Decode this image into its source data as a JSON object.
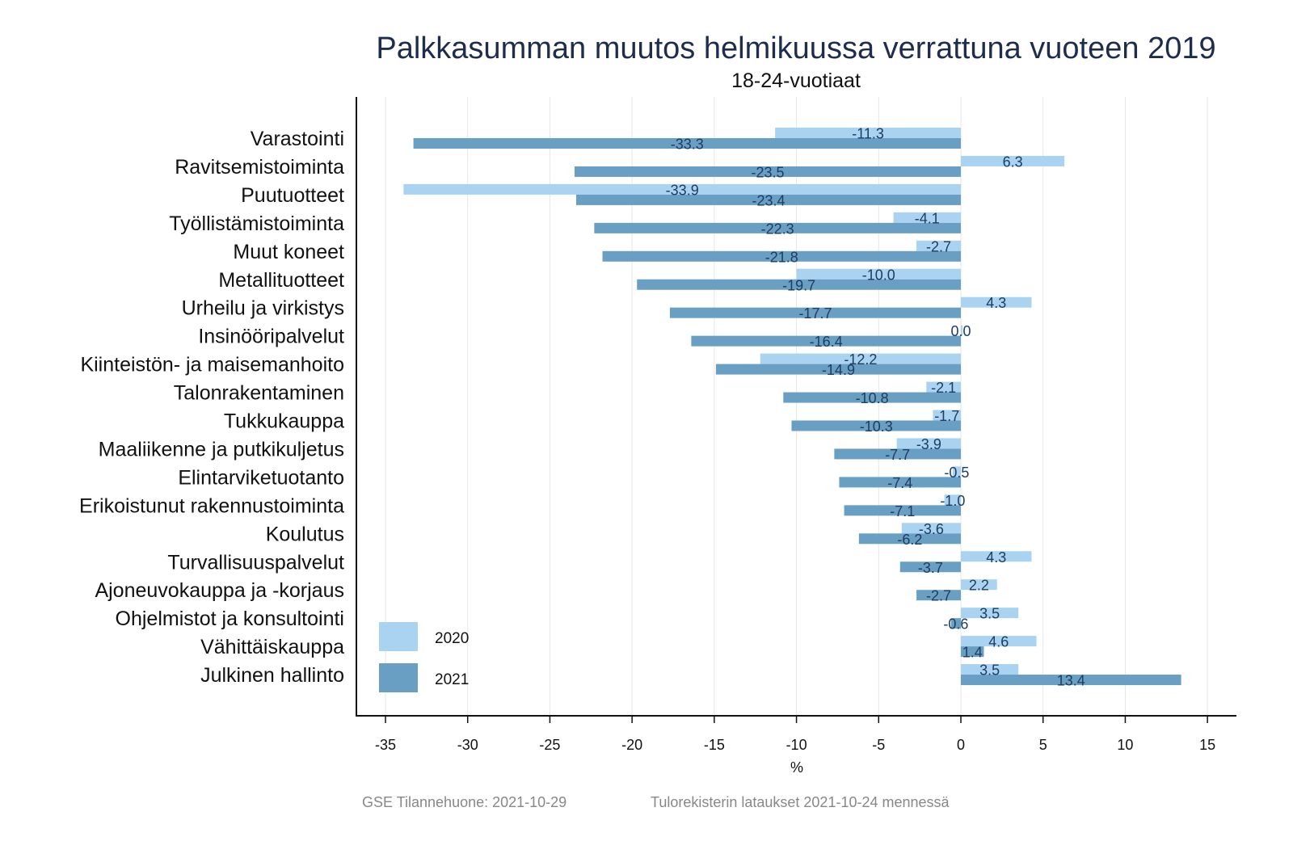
{
  "chart_data": {
    "type": "bar",
    "orientation": "horizontal",
    "title": "Palkkasumman muutos helmikuussa verrattuna vuoteen 2019",
    "subtitle": "18-24-vuotiaat",
    "xlabel": "%",
    "xlim": [
      -37,
      16.5
    ],
    "xticks": [
      -35,
      -30,
      -25,
      -20,
      -15,
      -10,
      -5,
      0,
      5,
      10,
      15
    ],
    "grid": true,
    "legend_position": "bottom-left",
    "categories": [
      "Varastointi",
      "Ravitsemistoiminta",
      "Puutuotteet",
      "Työllistämistoiminta",
      "Muut koneet",
      "Metallituotteet",
      "Urheilu ja virkistys",
      "Insinööripalvelut",
      "Kiinteistön- ja maisemanhoito",
      "Talonrakentaminen",
      "Tukkukauppa",
      "Maaliikenne ja putkikuljetus",
      "Elintarviketuotanto",
      "Erikoistunut rakennustoiminta",
      "Koulutus",
      "Turvallisuuspalvelut",
      "Ajoneuvokauppa ja -korjaus",
      "Ohjelmistot ja konsultointi",
      "Vähittäiskauppa",
      "Julkinen hallinto"
    ],
    "series": [
      {
        "name": "2020",
        "color": "#a9d3f0",
        "values": [
          -11.3,
          6.3,
          -33.9,
          -4.1,
          -2.7,
          -10.0,
          4.3,
          0.0,
          -12.2,
          -2.1,
          -1.7,
          -3.9,
          -0.5,
          -1.0,
          -3.6,
          4.3,
          2.2,
          3.5,
          4.6,
          3.5
        ]
      },
      {
        "name": "2021",
        "color": "#6a9fc4",
        "values": [
          -33.3,
          -23.5,
          -23.4,
          -22.3,
          -21.8,
          -19.7,
          -17.7,
          -16.4,
          -14.9,
          -10.8,
          -10.3,
          -7.7,
          -7.4,
          -7.1,
          -6.2,
          -3.7,
          -2.7,
          -0.6,
          1.4,
          13.4
        ]
      }
    ]
  },
  "caption": {
    "left": "GSE Tilannehuone: 2021-10-29",
    "right": "Tulorekisterin lataukset 2021-10-24 mennessä"
  }
}
